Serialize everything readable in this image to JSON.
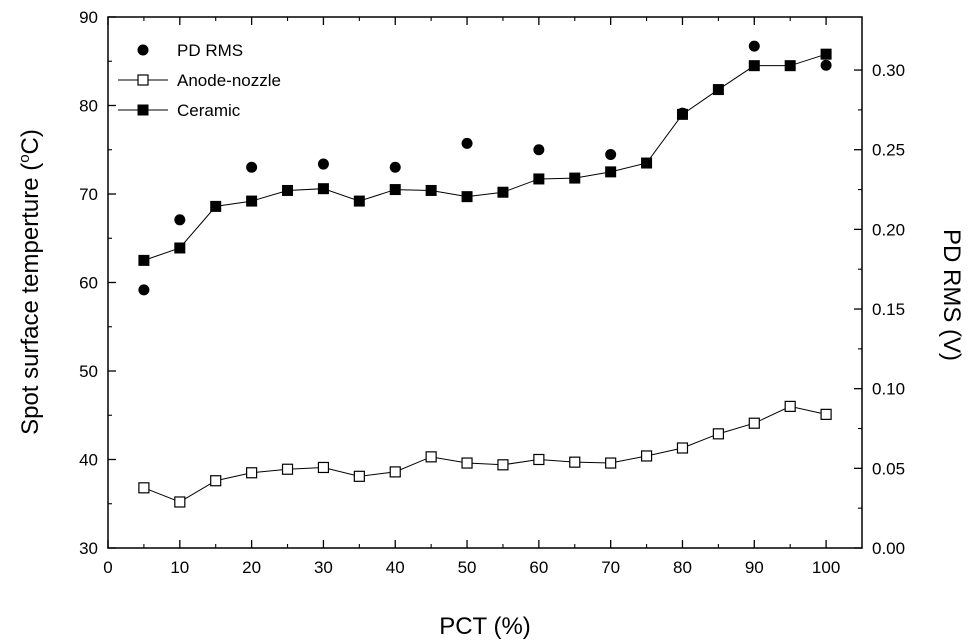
{
  "chart_data": {
    "type": "scatter",
    "x_label": "PCT (%)",
    "y_label_left": "Spot surface temperture (",
    "y_label_left_sup": "o",
    "y_label_left_unit": "C)",
    "y_label_right": "PD RMS (V)",
    "xlim": [
      0,
      105
    ],
    "ylim_left": [
      30,
      90
    ],
    "ylim_right": [
      0.0,
      0.3333
    ],
    "x_ticks": [
      0,
      10,
      20,
      30,
      40,
      50,
      60,
      70,
      80,
      90,
      100
    ],
    "y_ticks_left": [
      30,
      40,
      50,
      60,
      70,
      80,
      90
    ],
    "y_ticks_right": [
      "0.00",
      "0.05",
      "0.10",
      "0.15",
      "0.20",
      "0.25",
      "0.30"
    ],
    "grid": false,
    "legend_position": "top-left",
    "series": [
      {
        "name": "PD RMS",
        "axis": "right",
        "marker": "filled-circle",
        "line": false,
        "x": [
          5,
          10,
          20,
          30,
          40,
          50,
          60,
          70,
          80,
          90,
          100
        ],
        "values": [
          0.162,
          0.206,
          0.239,
          0.241,
          0.239,
          0.254,
          0.25,
          0.247,
          0.273,
          0.315,
          0.303
        ]
      },
      {
        "name": "Anode-nozzle",
        "axis": "left",
        "marker": "open-square",
        "line": true,
        "x": [
          5,
          10,
          15,
          20,
          25,
          30,
          35,
          40,
          45,
          50,
          55,
          60,
          65,
          70,
          75,
          80,
          85,
          90,
          95,
          100
        ],
        "values": [
          36.8,
          35.2,
          37.6,
          38.5,
          38.9,
          39.1,
          38.1,
          38.6,
          40.3,
          39.6,
          39.4,
          40.0,
          39.7,
          39.6,
          40.4,
          41.3,
          42.9,
          44.1,
          46.0,
          45.1
        ]
      },
      {
        "name": "Ceramic",
        "axis": "left",
        "marker": "filled-square",
        "line": true,
        "x": [
          5,
          10,
          15,
          20,
          25,
          30,
          35,
          40,
          45,
          50,
          55,
          60,
          65,
          70,
          75,
          80,
          85,
          90,
          95,
          100
        ],
        "values": [
          62.5,
          63.9,
          68.6,
          69.2,
          70.4,
          70.6,
          69.2,
          70.5,
          70.4,
          69.7,
          70.2,
          71.7,
          71.8,
          72.5,
          73.5,
          79.0,
          81.8,
          84.5,
          84.5,
          85.8
        ]
      }
    ]
  }
}
